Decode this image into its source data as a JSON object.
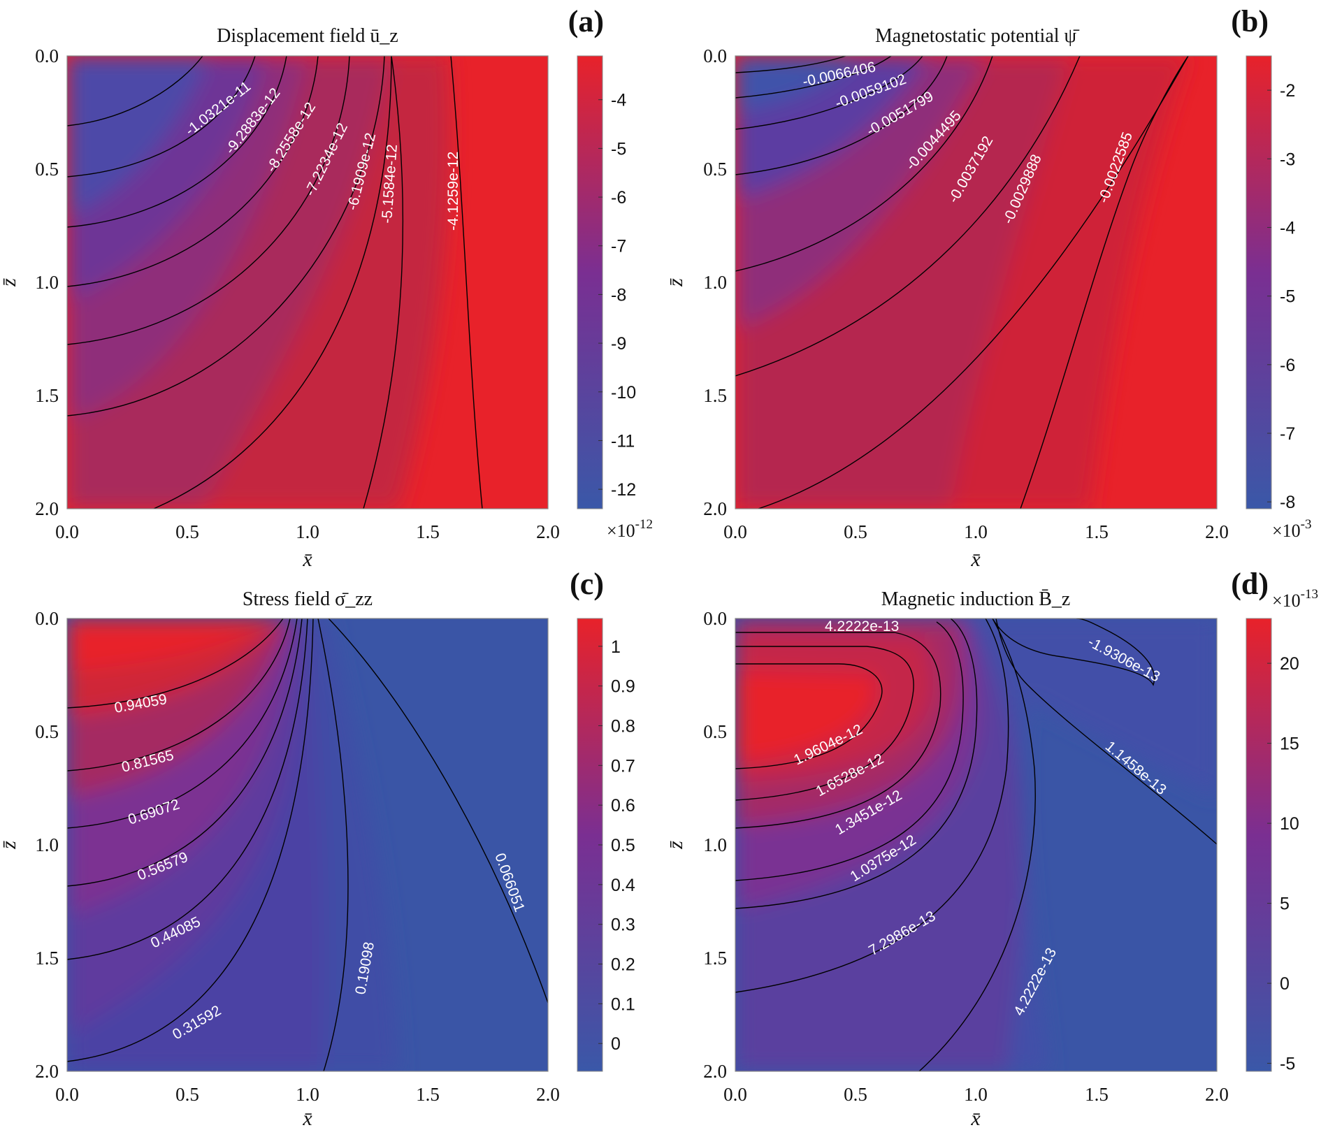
{
  "colors": {
    "low": "#3a58a8",
    "mid": "#7a2f92",
    "high": "#e8222a"
  },
  "chart_data": [
    {
      "type": "heatmap",
      "panel": "(a)",
      "title": "Displacement field ū_z",
      "xlabel": "x̄",
      "ylabel": "z̄",
      "xlim": [
        0,
        2
      ],
      "ylim": [
        0,
        2
      ],
      "x_ticks": [
        "0.0",
        "0.5",
        "1.0",
        "1.5",
        "2.0"
      ],
      "y_ticks": [
        "0.0",
        "0.5",
        "1.0",
        "1.5",
        "2.0"
      ],
      "colorbar": {
        "ticks": [
          "-4",
          "-5",
          "-6",
          "-7",
          "-8",
          "-9",
          "-10",
          "-11",
          "-12"
        ],
        "tick_values": [
          -4,
          -5,
          -6,
          -7,
          -8,
          -9,
          -10,
          -11,
          -12
        ],
        "range": [
          -12.4,
          -3.1
        ],
        "exponent_base": "×10",
        "exponent_power": "-12"
      },
      "contour_labels": [
        "-1.0321e-11",
        "-9.2883e-12",
        "-8.2558e-12",
        "-7.2234e-12",
        "-6.1909e-12",
        "-5.1584e-12",
        "-4.1259e-12"
      ]
    },
    {
      "type": "heatmap",
      "panel": "(b)",
      "title": "Magnetostatic potential ψ̄",
      "xlabel": "x̄",
      "ylabel": "z̄",
      "xlim": [
        0,
        2
      ],
      "ylim": [
        0,
        2
      ],
      "x_ticks": [
        "0.0",
        "0.5",
        "1.0",
        "1.5",
        "2.0"
      ],
      "y_ticks": [
        "0.0",
        "0.5",
        "1.0",
        "1.5",
        "2.0"
      ],
      "colorbar": {
        "ticks": [
          "-2",
          "-3",
          "-4",
          "-5",
          "-6",
          "-7",
          "-8"
        ],
        "tick_values": [
          -2,
          -3,
          -4,
          -5,
          -6,
          -7,
          -8
        ],
        "range": [
          -8.1,
          -1.5
        ],
        "exponent_base": "×10",
        "exponent_power": "-3"
      },
      "contour_labels": [
        "-0.0066406",
        "-0.0059102",
        "-0.0051799",
        "-0.0044495",
        "-0.0037192",
        "-0.0029888",
        "-0.0022585"
      ]
    },
    {
      "type": "heatmap",
      "panel": "(c)",
      "title": "Stress field σ̄_zz",
      "xlabel": "x̄",
      "ylabel": "z̄",
      "xlim": [
        0,
        2
      ],
      "ylim": [
        0,
        2
      ],
      "x_ticks": [
        "0.0",
        "0.5",
        "1.0",
        "1.5",
        "2.0"
      ],
      "y_ticks": [
        "0.0",
        "0.5",
        "1.0",
        "1.5",
        "2.0"
      ],
      "colorbar": {
        "ticks": [
          "1",
          "0.9",
          "0.8",
          "0.7",
          "0.6",
          "0.5",
          "0.4",
          "0.3",
          "0.2",
          "0.1",
          "0"
        ],
        "tick_values": [
          1,
          0.9,
          0.8,
          0.7,
          0.6,
          0.5,
          0.4,
          0.3,
          0.2,
          0.1,
          0
        ],
        "range": [
          -0.07,
          1.07
        ],
        "exponent_base": "",
        "exponent_power": ""
      },
      "contour_labels": [
        "0.94059",
        "0.81565",
        "0.69072",
        "0.56579",
        "0.44085",
        "0.31592",
        "0.19098",
        "0.066051"
      ]
    },
    {
      "type": "heatmap",
      "panel": "(d)",
      "title": "Magnetic induction B̄_z",
      "xlabel": "x̄",
      "ylabel": "z̄",
      "xlim": [
        0,
        2
      ],
      "ylim": [
        0,
        2
      ],
      "x_ticks": [
        "0.0",
        "0.5",
        "1.0",
        "1.5",
        "2.0"
      ],
      "y_ticks": [
        "0.0",
        "0.5",
        "1.0",
        "1.5",
        "2.0"
      ],
      "colorbar": {
        "ticks": [
          "20",
          "15",
          "10",
          "5",
          "0",
          "-5"
        ],
        "tick_values": [
          20,
          15,
          10,
          5,
          0,
          -5
        ],
        "range": [
          -5.5,
          22.8
        ],
        "exponent_base": "×10",
        "exponent_power": "-13"
      },
      "contour_labels": [
        "4.2222e-13",
        "-1.9306e-13",
        "1.9604e-12",
        "1.6528e-12",
        "1.3451e-12",
        "1.0375e-12",
        "7.2986e-13",
        "4.2222e-13",
        "1.1458e-13"
      ]
    }
  ]
}
